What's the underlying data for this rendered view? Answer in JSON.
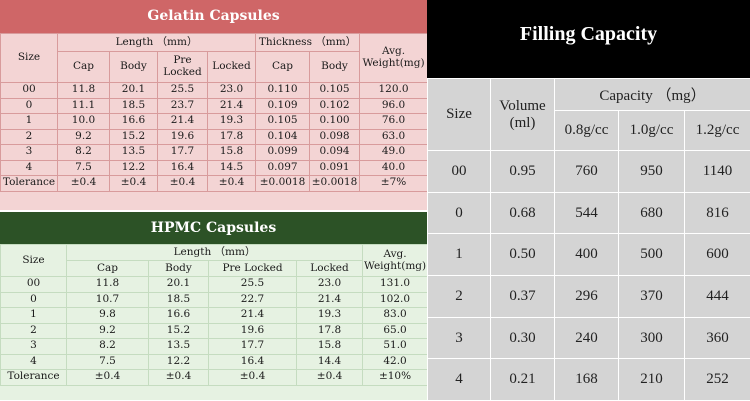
{
  "gelatin": {
    "title": "Gelatin Capsules",
    "header": {
      "size": "Size",
      "length": "Length （mm）",
      "thickness": "Thickness （mm）",
      "weight_line1": "Avg.",
      "weight_line2": "Weight(mg)",
      "cap": "Cap",
      "body": "Body",
      "prelocked_line1": "Pre",
      "prelocked_line2": "Locked",
      "locked": "Locked",
      "t_cap": "Cap",
      "t_body": "Body"
    },
    "rows": [
      [
        "00",
        "11.8",
        "20.1",
        "25.5",
        "23.0",
        "0.110",
        "0.105",
        "120.0"
      ],
      [
        "0",
        "11.1",
        "18.5",
        "23.7",
        "21.4",
        "0.109",
        "0.102",
        "96.0"
      ],
      [
        "1",
        "10.0",
        "16.6",
        "21.4",
        "19.3",
        "0.105",
        "0.100",
        "76.0"
      ],
      [
        "2",
        "9.2",
        "15.2",
        "19.6",
        "17.8",
        "0.104",
        "0.098",
        "63.0"
      ],
      [
        "3",
        "8.2",
        "13.5",
        "17.7",
        "15.8",
        "0.099",
        "0.094",
        "49.0"
      ],
      [
        "4",
        "7.5",
        "12.2",
        "16.4",
        "14.5",
        "0.097",
        "0.091",
        "40.0"
      ],
      [
        "Tolerance",
        "±0.4",
        "±0.4",
        "±0.4",
        "±0.4",
        "±0.0018",
        "±0.0018",
        "±7%"
      ]
    ]
  },
  "hpmc": {
    "title": "HPMC Capsules",
    "header": {
      "size": "Size",
      "length": "Length （mm）",
      "weight_line1": "Avg.",
      "weight_line2": "Weight(mg)",
      "cap": "Cap",
      "body": "Body",
      "prelocked": "Pre Locked",
      "locked": "Locked"
    },
    "rows": [
      [
        "00",
        "11.8",
        "20.1",
        "25.5",
        "23.0",
        "131.0"
      ],
      [
        "0",
        "10.7",
        "18.5",
        "22.7",
        "21.4",
        "102.0"
      ],
      [
        "1",
        "9.8",
        "16.6",
        "21.4",
        "19.3",
        "83.0"
      ],
      [
        "2",
        "9.2",
        "15.2",
        "19.6",
        "17.8",
        "65.0"
      ],
      [
        "3",
        "8.2",
        "13.5",
        "17.7",
        "15.8",
        "51.0"
      ],
      [
        "4",
        "7.5",
        "12.2",
        "16.4",
        "14.4",
        "42.0"
      ],
      [
        "Tolerance",
        "±0.4",
        "±0.4",
        "±0.4",
        "±0.4",
        "±10%"
      ]
    ]
  },
  "filling": {
    "title": "Filling Capacity",
    "header": {
      "size": "Size",
      "volume_line1": "Volume",
      "volume_line2": "(ml)",
      "capacity": "Capacity （mg）",
      "d1": "0.8g/cc",
      "d2": "1.0g/cc",
      "d3": "1.2g/cc"
    },
    "rows": [
      [
        "00",
        "0.95",
        "760",
        "950",
        "1140"
      ],
      [
        "0",
        "0.68",
        "544",
        "680",
        "816"
      ],
      [
        "1",
        "0.50",
        "400",
        "500",
        "600"
      ],
      [
        "2",
        "0.37",
        "296",
        "370",
        "444"
      ],
      [
        "3",
        "0.30",
        "240",
        "300",
        "360"
      ],
      [
        "4",
        "0.21",
        "168",
        "210",
        "252"
      ]
    ]
  },
  "colors": {
    "gelatin_header": "#cf6667",
    "gelatin_bg": "#f3d4d4",
    "hpmc_header": "#2c5226",
    "hpmc_bg": "#e6f2e2",
    "filling_header": "#000000",
    "filling_bg": "#d4d4d4"
  }
}
